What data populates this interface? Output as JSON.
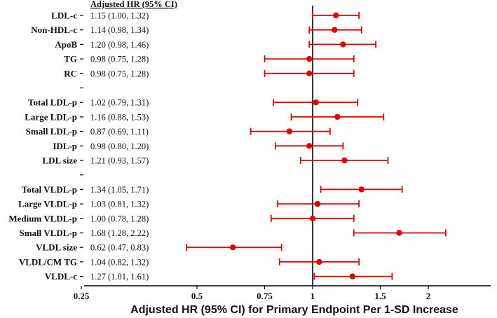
{
  "chart_data": {
    "type": "forest",
    "header": "Adjusted HR (95% CI)",
    "xlabel": "Adjusted HR (95% CI) for Primary Endpoint Per 1-SD Increase",
    "xscale": "log",
    "xlim": [
      0.25,
      3.0
    ],
    "reference_line": 1,
    "xticks": [
      {
        "value": 0.25,
        "label": "0.25"
      },
      {
        "value": 0.5,
        "label": "0.5"
      },
      {
        "value": 0.75,
        "label": "0.75"
      },
      {
        "value": 1,
        "label": "1"
      },
      {
        "value": 1.5,
        "label": "1.5"
      },
      {
        "value": 2,
        "label": "2"
      }
    ],
    "colors": {
      "marker": "#e00000",
      "reference": "#000000"
    },
    "rows": [
      {
        "label": "LDL-c",
        "text": "1.15 (1.00, 1.32)",
        "hr": 1.15,
        "lo": 1.0,
        "hi": 1.32
      },
      {
        "label": "Non-HDL-c",
        "text": "1.14 (0.98, 1.34)",
        "hr": 1.14,
        "lo": 0.98,
        "hi": 1.34
      },
      {
        "label": "ApoB",
        "text": "1.20 (0.98, 1.46)",
        "hr": 1.2,
        "lo": 0.98,
        "hi": 1.46
      },
      {
        "label": "TG",
        "text": "0.98 (0.75, 1.28)",
        "hr": 0.98,
        "lo": 0.75,
        "hi": 1.28
      },
      {
        "label": "RC",
        "text": "0.98 (0.75, 1.28)",
        "hr": 0.98,
        "lo": 0.75,
        "hi": 1.28
      },
      {
        "blank": true
      },
      {
        "label": "Total LDL-p",
        "text": "1.02 (0.79, 1.31)",
        "hr": 1.02,
        "lo": 0.79,
        "hi": 1.31
      },
      {
        "label": "Large LDL-p",
        "text": "1.16 (0.88, 1.53)",
        "hr": 1.16,
        "lo": 0.88,
        "hi": 1.53
      },
      {
        "label": "Small LDL-p",
        "text": "0.87 (0.69, 1.11)",
        "hr": 0.87,
        "lo": 0.69,
        "hi": 1.11
      },
      {
        "label": "IDL-p",
        "text": "0.98 (0.80, 1.20)",
        "hr": 0.98,
        "lo": 0.8,
        "hi": 1.2
      },
      {
        "label": "LDL size",
        "text": "1.21 (0.93, 1.57)",
        "hr": 1.21,
        "lo": 0.93,
        "hi": 1.57
      },
      {
        "blank": true
      },
      {
        "label": "Total VLDL-p",
        "text": "1.34 (1.05, 1.71)",
        "hr": 1.34,
        "lo": 1.05,
        "hi": 1.71
      },
      {
        "label": "Large VLDL-p",
        "text": "1.03 (0.81, 1.32)",
        "hr": 1.03,
        "lo": 0.81,
        "hi": 1.32
      },
      {
        "label": "Medium VLDL-p",
        "text": "1.00 (0.78, 1.28)",
        "hr": 1.0,
        "lo": 0.78,
        "hi": 1.28
      },
      {
        "label": "Small VLDL-p",
        "text": "1.68 (1.28, 2.22)",
        "hr": 1.68,
        "lo": 1.28,
        "hi": 2.22
      },
      {
        "label": "VLDL size",
        "text": "0.62 (0.47, 0.83)",
        "hr": 0.62,
        "lo": 0.47,
        "hi": 0.83
      },
      {
        "label": "VLDL/CM TG",
        "text": "1.04 (0.82, 1.32)",
        "hr": 1.04,
        "lo": 0.82,
        "hi": 1.32
      },
      {
        "label": "VLDL-c",
        "text": "1.27 (1.01, 1.61)",
        "hr": 1.27,
        "lo": 1.01,
        "hi": 1.61
      }
    ]
  }
}
